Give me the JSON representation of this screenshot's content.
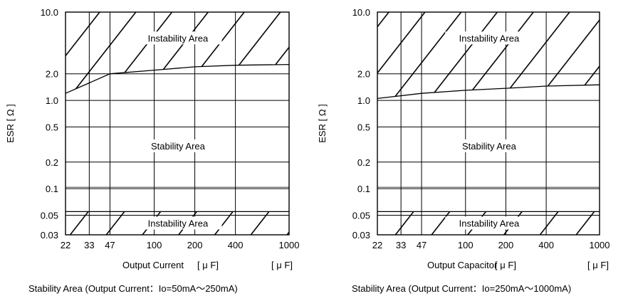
{
  "colors": {
    "ink": "#000000",
    "background": "#ffffff"
  },
  "chart_data": [
    {
      "type": "line",
      "xscale": "log",
      "yscale": "log",
      "xlim": [
        22,
        1000
      ],
      "ylim": [
        0.03,
        10.0
      ],
      "x_ticks": [
        22,
        33,
        47,
        100,
        200,
        400,
        1000
      ],
      "x_tick_labels": [
        "22",
        "33",
        "47",
        "100",
        "200",
        "400",
        "1000"
      ],
      "y_ticks": [
        0.03,
        0.05,
        0.1,
        0.2,
        0.5,
        1.0,
        2.0,
        10.0
      ],
      "y_tick_labels": [
        "0.03",
        "0.05",
        "0.1",
        "0.2",
        "0.5",
        "1.0",
        "2.0",
        "10.0"
      ],
      "xlabel": "Output Current",
      "xunit_mid": "[ μ F]",
      "xunit_end": "[ μ F]",
      "ylabel": "ESR [ Ω ]",
      "caption": "Stability Area (Output Current：Io=50mA～250mA)",
      "grid": true,
      "upper_boundary": {
        "x": [
          22,
          47,
          100,
          200,
          400,
          1000
        ],
        "y": [
          1.2,
          2.0,
          2.2,
          2.4,
          2.5,
          2.55
        ]
      },
      "lower_boundary": {
        "x": [
          22,
          1000
        ],
        "y": [
          0.055,
          0.055
        ]
      },
      "region_labels": [
        {
          "text": "Instability Area",
          "x": 150,
          "y": 5.0
        },
        {
          "text": "Stability Area",
          "x": 150,
          "y": 0.3
        },
        {
          "text": "Instability Area",
          "x": 150,
          "y": 0.04
        }
      ]
    },
    {
      "type": "line",
      "xscale": "log",
      "yscale": "log",
      "xlim": [
        22,
        1000
      ],
      "ylim": [
        0.03,
        10.0
      ],
      "x_ticks": [
        22,
        33,
        47,
        100,
        200,
        400,
        1000
      ],
      "x_tick_labels": [
        "22",
        "33",
        "47",
        "100",
        "200",
        "400",
        "1000"
      ],
      "y_ticks": [
        0.03,
        0.05,
        0.1,
        0.2,
        0.5,
        1.0,
        2.0,
        10.0
      ],
      "y_tick_labels": [
        "0.03",
        "0.05",
        "0.1",
        "0.2",
        "0.5",
        "1.0",
        "2.0",
        "10.0"
      ],
      "xlabel": "Output Capacitor",
      "xunit_mid": "[ μ F]",
      "xunit_end": "[ μ F]",
      "ylabel": "ESR [ Ω ]",
      "caption": "Stability Area (Output Current：Io=250mA～1000mA)",
      "grid": true,
      "upper_boundary": {
        "x": [
          22,
          47,
          100,
          200,
          400,
          1000
        ],
        "y": [
          1.05,
          1.2,
          1.3,
          1.37,
          1.45,
          1.5
        ]
      },
      "lower_boundary": {
        "x": [
          22,
          1000
        ],
        "y": [
          0.055,
          0.055
        ]
      },
      "region_labels": [
        {
          "text": "Instability Area",
          "x": 150,
          "y": 5.0
        },
        {
          "text": "Stability Area",
          "x": 150,
          "y": 0.3
        },
        {
          "text": "Instability Area",
          "x": 150,
          "y": 0.04
        }
      ]
    }
  ]
}
